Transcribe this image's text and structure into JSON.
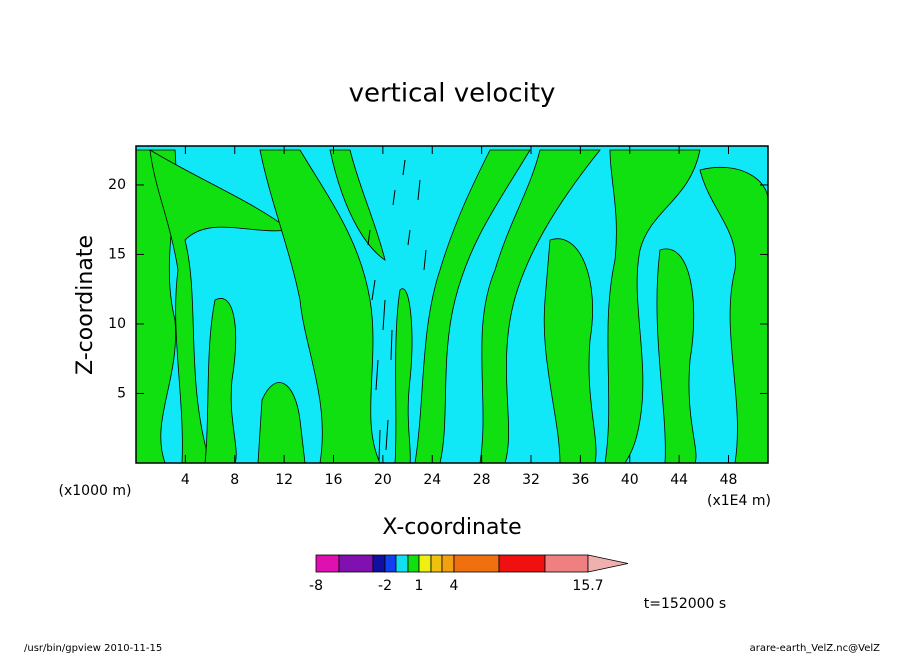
{
  "chart_data": {
    "type": "contour",
    "title": "vertical velocity",
    "x_label": "X-coordinate",
    "y_label": "Z-coordinate",
    "x_unit": "(x1E4 m)",
    "y_unit": "(x1000 m)",
    "xlim": [
      0,
      51.2
    ],
    "xticks": [
      4,
      8,
      12,
      16,
      20,
      24,
      28,
      32,
      36,
      40,
      44,
      48
    ],
    "ylim": [
      0,
      22.8
    ],
    "yticks": [
      5,
      10,
      15,
      20
    ],
    "colorbar": {
      "ticks": [
        -8,
        -2,
        1,
        4,
        15.7
      ],
      "colors": [
        "#e010b0",
        "#8010b0",
        "#1010a0",
        "#1040f0",
        "#10e0f0",
        "#10e010",
        "#f0f010",
        "#f0c010",
        "#f0a010",
        "#f07010",
        "#f01010",
        "#f08080",
        "#f0b0b0"
      ]
    },
    "time_label": "t=152000 s",
    "footer_left": "/usr/bin/gpview  2010-11-15",
    "footer_right": "arare-earth_VelZ.nc@VelZ"
  }
}
